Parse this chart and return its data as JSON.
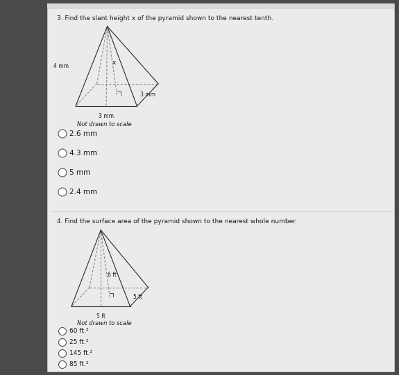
{
  "left_strip_color": "#4a4a4a",
  "panel_color": "#ebebeb",
  "panel_border_color": "#cccccc",
  "divider_color": "#cccccc",
  "q3_title": "3. Find the slant height x of the pyramid shown to the nearest tenth.",
  "q3_not_to_scale": "Not drawn to scale",
  "q3_choices": [
    "2.6 mm",
    "4.3 mm",
    "5 mm",
    "2.4 mm"
  ],
  "q4_title": "4. Find the surface area of the pyramid shown to the nearest whole number.",
  "q4_not_to_scale": "Not drawn to scale",
  "q4_choices": [
    "60 ft.²",
    "25 ft.²",
    "145 ft.²",
    "85 ft.²"
  ],
  "text_color": "#1a1a1a",
  "line_color": "#2a2a2a",
  "dashed_color": "#888888",
  "circle_ec": "#555555",
  "font_size_title": 6.5,
  "font_size_label": 5.5,
  "font_size_choice": 7.5,
  "font_size_notscale": 6.0
}
